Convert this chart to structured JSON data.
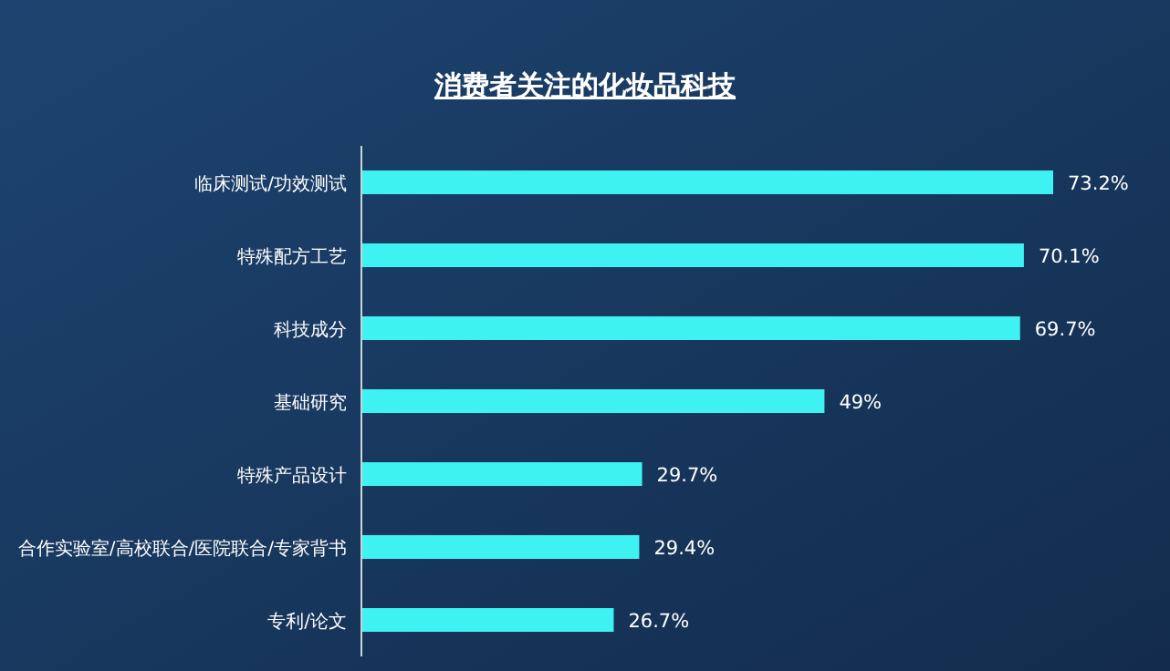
{
  "chart_data": {
    "type": "bar",
    "orientation": "horizontal",
    "title": "消费者关注的化妆品科技",
    "categories": [
      "临床测试/功效测试",
      "特殊配方工艺",
      "科技成分",
      "基础研究",
      "特殊产品设计",
      "合作实验室/高校联合/医院联合/专家背书",
      "专利/论文"
    ],
    "values": [
      73.2,
      70.1,
      69.7,
      49,
      29.7,
      29.4,
      26.7
    ],
    "value_labels": [
      "73.2%",
      "70.1%",
      "69.7%",
      "49%",
      "29.7%",
      "29.4%",
      "26.7%"
    ],
    "color": "#3ef2f2"
  }
}
